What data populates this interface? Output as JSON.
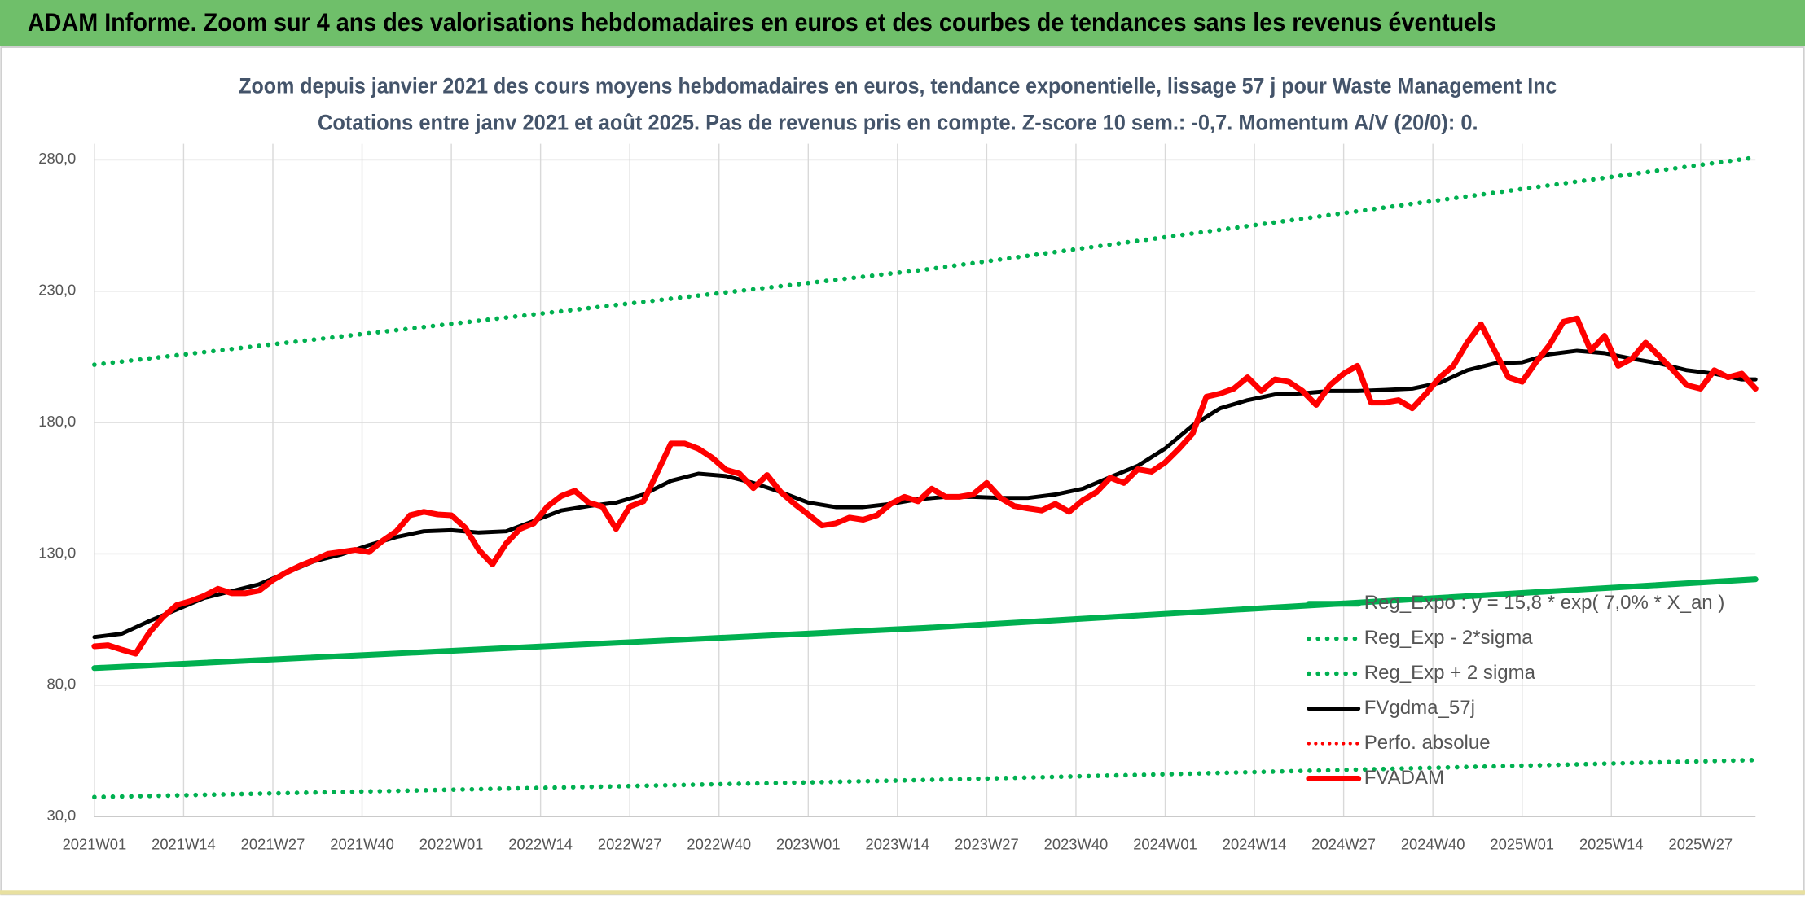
{
  "header": {
    "title": "ADAM Informe. Zoom sur 4 ans des valorisations hebdomadaires en euros et des courbes de tendances sans les revenus éventuels"
  },
  "chart_data": {
    "type": "line",
    "title": "Zoom depuis janvier 2021 des cours moyens hebdomadaires en euros, tendance exponentielle, lissage 57 j pour Waste Management Inc",
    "subtitle": "Cotations entre janv 2021 et août 2025. Pas de revenus pris en compte. Z-score 10 sem.: -0,7. Momentum A/V (20/0): 0.",
    "xlim": [
      0,
      242
    ],
    "xticks": [
      {
        "value": 0,
        "label": "2021W01"
      },
      {
        "value": 13,
        "label": "2021W14"
      },
      {
        "value": 26,
        "label": "2021W27"
      },
      {
        "value": 39,
        "label": "2021W40"
      },
      {
        "value": 52,
        "label": "2022W01"
      },
      {
        "value": 65,
        "label": "2022W14"
      },
      {
        "value": 78,
        "label": "2022W27"
      },
      {
        "value": 91,
        "label": "2022W40"
      },
      {
        "value": 104,
        "label": "2023W01"
      },
      {
        "value": 117,
        "label": "2023W14"
      },
      {
        "value": 130,
        "label": "2023W27"
      },
      {
        "value": 143,
        "label": "2023W40"
      },
      {
        "value": 156,
        "label": "2024W01"
      },
      {
        "value": 169,
        "label": "2024W14"
      },
      {
        "value": 182,
        "label": "2024W27"
      },
      {
        "value": 195,
        "label": "2024W40"
      },
      {
        "value": 208,
        "label": "2025W01"
      },
      {
        "value": 221,
        "label": "2025W14"
      },
      {
        "value": 234,
        "label": "2025W27"
      }
    ],
    "ylim": [
      30,
      280
    ],
    "yticks": [
      {
        "value": 30,
        "label": "30,0"
      },
      {
        "value": 80,
        "label": "80,0"
      },
      {
        "value": 130,
        "label": "130,0"
      },
      {
        "value": 180,
        "label": "180,0"
      },
      {
        "value": 230,
        "label": "230,0"
      },
      {
        "value": 280,
        "label": "280,0"
      }
    ],
    "grid": true,
    "legend": "lower right",
    "series": [
      {
        "name": "Reg_Expo : y = 15,8 * exp( 7,0% *  X_an )",
        "color": "#00b050",
        "line_style": "solid",
        "linewidth": 5,
        "x": [
          0,
          121,
          242
        ],
        "values": [
          86.5,
          101.8,
          120.3
        ]
      },
      {
        "name": "Reg_Exp - 2*sigma",
        "color": "#00b050",
        "line_style": "dotted",
        "linewidth": 4,
        "x": [
          0,
          121,
          242
        ],
        "values": [
          37.4,
          43.9,
          51.5
        ]
      },
      {
        "name": "Reg_Exp + 2 sigma",
        "color": "#00b050",
        "line_style": "dotted",
        "linewidth": 4,
        "x": [
          0,
          121,
          242
        ],
        "values": [
          202,
          238.2,
          280.9
        ]
      },
      {
        "name": "FVgdma_57j",
        "color": "#000000",
        "line_style": "solid",
        "linewidth": 3.5,
        "x": [
          0,
          4,
          8,
          12,
          16,
          20,
          24,
          28,
          32,
          36,
          40,
          44,
          48,
          52,
          56,
          60,
          64,
          68,
          72,
          76,
          80,
          84,
          88,
          92,
          96,
          100,
          104,
          108,
          112,
          116,
          120,
          124,
          128,
          132,
          136,
          140,
          144,
          148,
          152,
          156,
          160,
          164,
          168,
          172,
          176,
          180,
          184,
          188,
          192,
          196,
          200,
          204,
          208,
          212,
          216,
          220,
          224,
          228,
          232,
          236,
          240,
          242
        ],
        "values": [
          98.3,
          99.6,
          104.4,
          108.8,
          113.2,
          115.8,
          118.4,
          122.8,
          127.2,
          129.8,
          133.3,
          136.4,
          138.6,
          139,
          138.1,
          138.6,
          142.5,
          146.5,
          148.2,
          149.5,
          152.6,
          157.8,
          160.5,
          159.6,
          157,
          153.5,
          149.5,
          147.8,
          147.8,
          149,
          150.8,
          151.7,
          151.7,
          151.3,
          151.3,
          152.6,
          154.8,
          159.2,
          163.5,
          170.1,
          178.9,
          185.4,
          188.5,
          190.7,
          191.1,
          192,
          192,
          192.4,
          192.9,
          195.1,
          199.9,
          202.5,
          202.9,
          206,
          207.3,
          206.4,
          204.3,
          202.5,
          199.9,
          198.6,
          196.4,
          196.4
        ]
      },
      {
        "name": "Perfo. absolue",
        "color": "#ff0000",
        "line_style": "dotted",
        "linewidth": 3,
        "x": [],
        "values": []
      },
      {
        "name": "FVADAM",
        "color": "#ff0000",
        "line_style": "solid",
        "linewidth": 5,
        "x": [
          0,
          2,
          4,
          6,
          8,
          10,
          12,
          14,
          16,
          18,
          20,
          22,
          24,
          26,
          28,
          30,
          32,
          34,
          36,
          38,
          40,
          42,
          44,
          46,
          48,
          50,
          52,
          54,
          56,
          58,
          60,
          62,
          64,
          66,
          68,
          70,
          72,
          74,
          76,
          78,
          80,
          82,
          84,
          86,
          88,
          90,
          92,
          94,
          96,
          98,
          100,
          102,
          104,
          106,
          108,
          110,
          112,
          114,
          116,
          118,
          120,
          122,
          124,
          126,
          128,
          130,
          132,
          134,
          136,
          138,
          140,
          142,
          144,
          146,
          148,
          150,
          152,
          154,
          156,
          158,
          160,
          162,
          164,
          166,
          168,
          170,
          172,
          174,
          176,
          178,
          180,
          182,
          184,
          186,
          188,
          190,
          192,
          194,
          196,
          198,
          200,
          202,
          204,
          206,
          208,
          210,
          212,
          214,
          216,
          218,
          220,
          222,
          224,
          226,
          228,
          230,
          232,
          234,
          236,
          238,
          240,
          242
        ],
        "values": [
          94.8,
          95.2,
          93.5,
          92,
          100,
          106,
          110.5,
          112,
          114,
          116.7,
          115,
          115,
          116,
          120,
          123,
          125.5,
          127.6,
          130,
          130.7,
          131.5,
          130.7,
          135,
          138.6,
          144.7,
          146,
          145,
          144.7,
          140,
          131.5,
          126,
          134,
          139.5,
          141.6,
          148,
          152,
          154,
          149.5,
          148,
          139.5,
          148,
          150,
          161,
          172,
          172,
          170,
          166.6,
          162,
          160.5,
          155,
          160,
          153.5,
          149,
          145,
          140.8,
          141.6,
          143.8,
          143,
          144.7,
          149,
          151.7,
          150,
          154.8,
          151.7,
          151.7,
          152.6,
          157,
          151.3,
          148.2,
          147.3,
          146.5,
          149,
          146,
          150.4,
          153.5,
          159,
          157,
          162.2,
          161.3,
          164.8,
          170,
          175.8,
          189.8,
          191,
          192.9,
          197.2,
          192,
          196.4,
          195.5,
          192,
          186.7,
          194.2,
          198.6,
          201.6,
          187.6,
          187.6,
          188.5,
          185.4,
          191,
          197.2,
          201.6,
          210.4,
          217.4,
          207.3,
          197.2,
          195.5,
          202.9,
          209.5,
          218.3,
          219.6,
          207.3,
          213,
          201.6,
          204.3,
          210.4,
          205.2,
          199.9,
          194.2,
          192.9,
          199.9,
          197.2,
          198.6,
          192.9
        ]
      }
    ]
  }
}
